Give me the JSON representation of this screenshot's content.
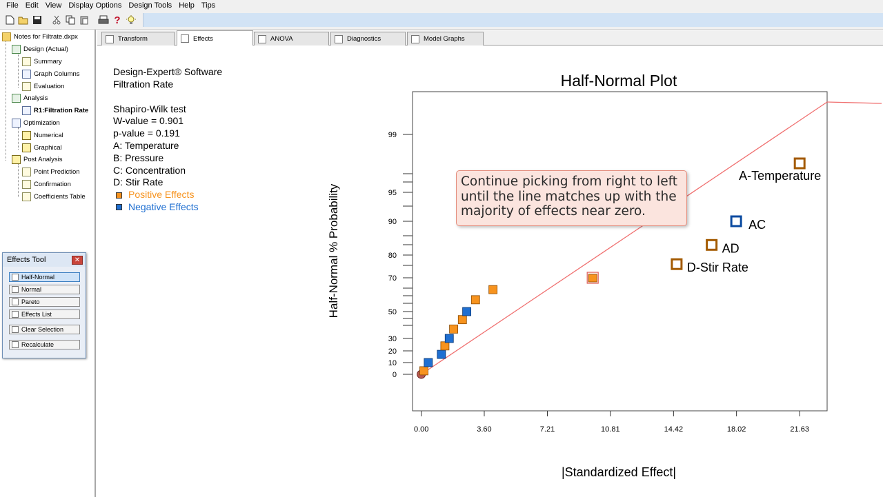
{
  "menu": [
    "File",
    "Edit",
    "View",
    "Display Options",
    "Design Tools",
    "Help",
    "Tips"
  ],
  "toolbar": {
    "icons": [
      "new-file-icon",
      "open-folder-icon",
      "save-icon",
      "cut-icon",
      "copy-icon",
      "paste-icon",
      "print-icon",
      "help-icon",
      "tip-bulb-icon"
    ]
  },
  "tree": {
    "root": "Notes for Filtrate.dxpx",
    "design": "Design (Actual)",
    "summary": "Summary",
    "graph_columns": "Graph Columns",
    "evaluation": "Evaluation",
    "analysis": "Analysis",
    "r1": "R1:Filtration Rate",
    "optimization": "Optimization",
    "numerical": "Numerical",
    "graphical": "Graphical",
    "post_analysis": "Post Analysis",
    "point_prediction": "Point Prediction",
    "confirmation": "Confirmation",
    "coefficients_table": "Coefficients Table"
  },
  "tabs": [
    "Transform",
    "Effects",
    "ANOVA",
    "Diagnostics",
    "Model Graphs"
  ],
  "active_tab": "Effects",
  "info": {
    "software": "Design-Expert® Software",
    "response": "Filtration Rate",
    "test": "Shapiro-Wilk test",
    "w_value": "W-value = 0.901",
    "p_value": "p-value = 0.191",
    "factor_a": "A: Temperature",
    "factor_b": "B: Pressure",
    "factor_c": "C: Concentration",
    "factor_d": "D: Stir Rate",
    "positive": "Positive Effects",
    "negative": "Negative Effects"
  },
  "colors": {
    "positive": "#f7931e",
    "negative": "#1f6fd1",
    "line": "#f07070",
    "callout_bg": "#fbe4de"
  },
  "effects_tool": {
    "title": "Effects Tool",
    "buttons": [
      "Half-Normal",
      "Normal",
      "Pareto",
      "Effects List",
      "Clear Selection",
      "Recalculate"
    ]
  },
  "callout": {
    "text": "Continue picking from right to left until the line matches up with the majority of effects near zero."
  },
  "chart_data": {
    "type": "scatter",
    "title": "Half-Normal Plot",
    "xlabel": "|Standardized Effect|",
    "ylabel": "Half-Normal % Probability",
    "xlim": [
      -0.5,
      23.2
    ],
    "x_ticks": [
      "0.00",
      "3.60",
      "7.21",
      "10.81",
      "14.42",
      "18.02",
      "21.63"
    ],
    "y_ticks": [
      "0",
      "10",
      "20",
      "30",
      "50",
      "70",
      "80",
      "90",
      "95",
      "99"
    ],
    "points": [
      {
        "x": 0.0,
        "y": 0,
        "kind": "origin",
        "label": ""
      },
      {
        "x": 0.15,
        "y": 3,
        "kind": "positive",
        "label": ""
      },
      {
        "x": 0.4,
        "y": 10,
        "kind": "negative",
        "label": ""
      },
      {
        "x": 1.15,
        "y": 17,
        "kind": "negative",
        "label": ""
      },
      {
        "x": 1.35,
        "y": 24,
        "kind": "positive",
        "label": ""
      },
      {
        "x": 1.6,
        "y": 30,
        "kind": "negative",
        "label": ""
      },
      {
        "x": 1.85,
        "y": 37,
        "kind": "positive",
        "label": ""
      },
      {
        "x": 2.35,
        "y": 44,
        "kind": "positive",
        "label": ""
      },
      {
        "x": 2.6,
        "y": 50,
        "kind": "negative",
        "label": ""
      },
      {
        "x": 3.1,
        "y": 57,
        "kind": "positive",
        "label": ""
      },
      {
        "x": 4.1,
        "y": 63,
        "kind": "positive",
        "label": ""
      },
      {
        "x": 9.8,
        "y": 70,
        "kind": "positive-selected",
        "label": ""
      },
      {
        "x": 14.6,
        "y": 76,
        "kind": "positive-picked",
        "label": "D-Stir Rate"
      },
      {
        "x": 16.6,
        "y": 83,
        "kind": "positive-picked",
        "label": "AD"
      },
      {
        "x": 18.0,
        "y": 90,
        "kind": "negative-picked",
        "label": "AC"
      },
      {
        "x": 21.63,
        "y": 97,
        "kind": "positive-picked",
        "label": "A-Temperature"
      }
    ],
    "fit_line": {
      "x0": 0.0,
      "y0": 0,
      "x1": 23.2,
      "y1": 99.5
    }
  }
}
